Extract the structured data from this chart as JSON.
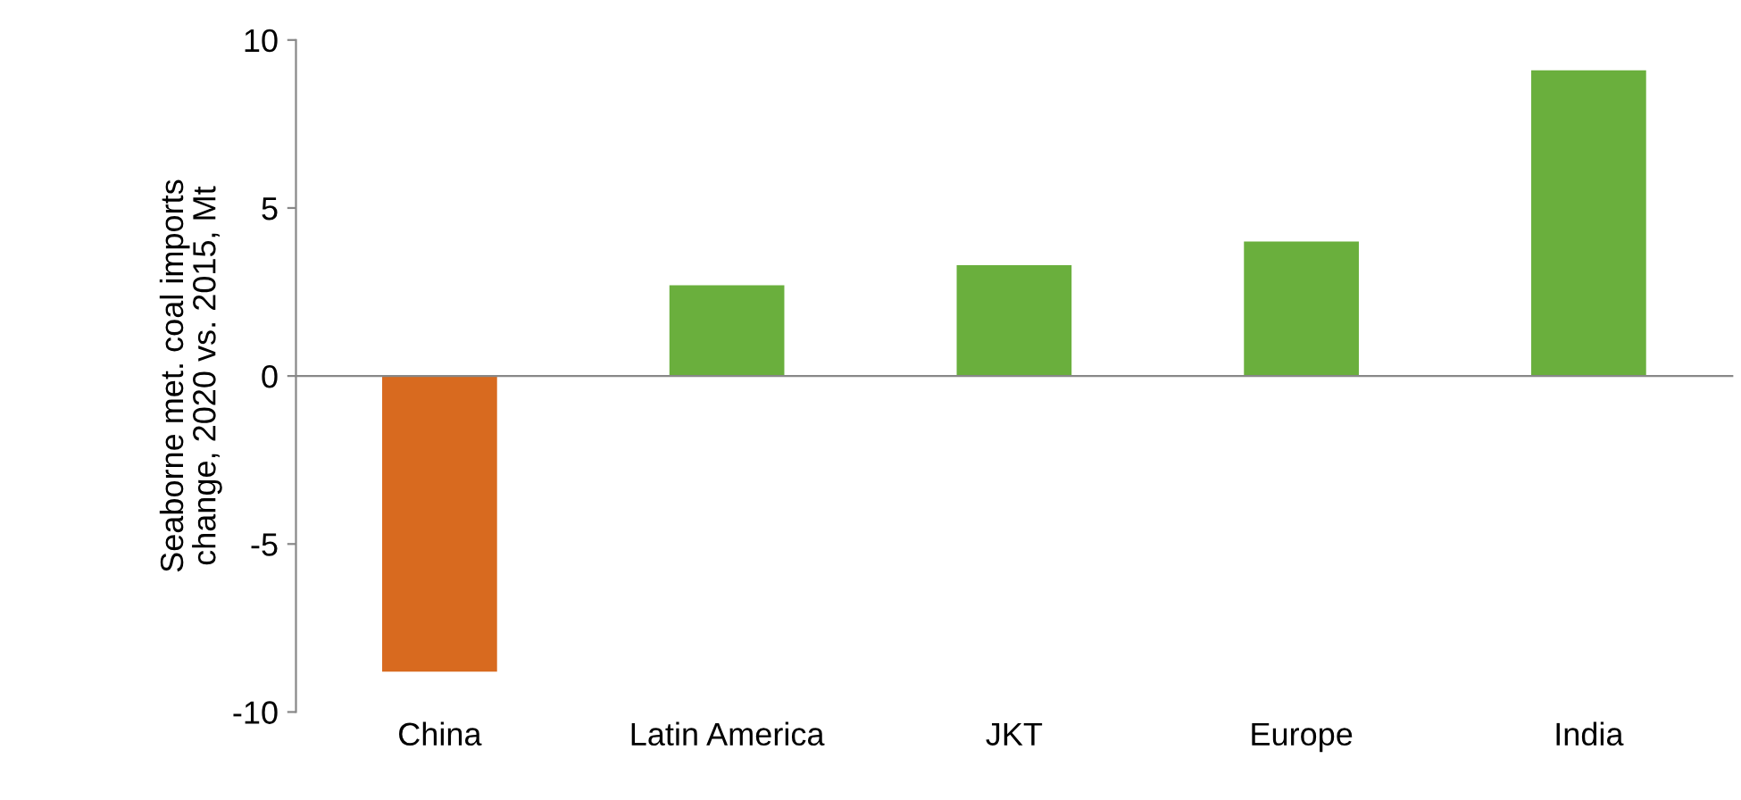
{
  "chart_data": {
    "type": "bar",
    "ylabel": "Seaborne met. coal imports\nchange, 2020 vs. 2015, Mt",
    "categories": [
      "China",
      "Latin America",
      "JKT",
      "Europe",
      "India"
    ],
    "values": [
      -8.8,
      2.7,
      3.3,
      4.0,
      9.1
    ],
    "colors": [
      "#d86a1f",
      "#6aaf3d",
      "#6aaf3d",
      "#6aaf3d",
      "#6aaf3d"
    ],
    "ylim": [
      -10,
      10
    ],
    "yticks": [
      -10,
      -5,
      0,
      5,
      10
    ]
  }
}
